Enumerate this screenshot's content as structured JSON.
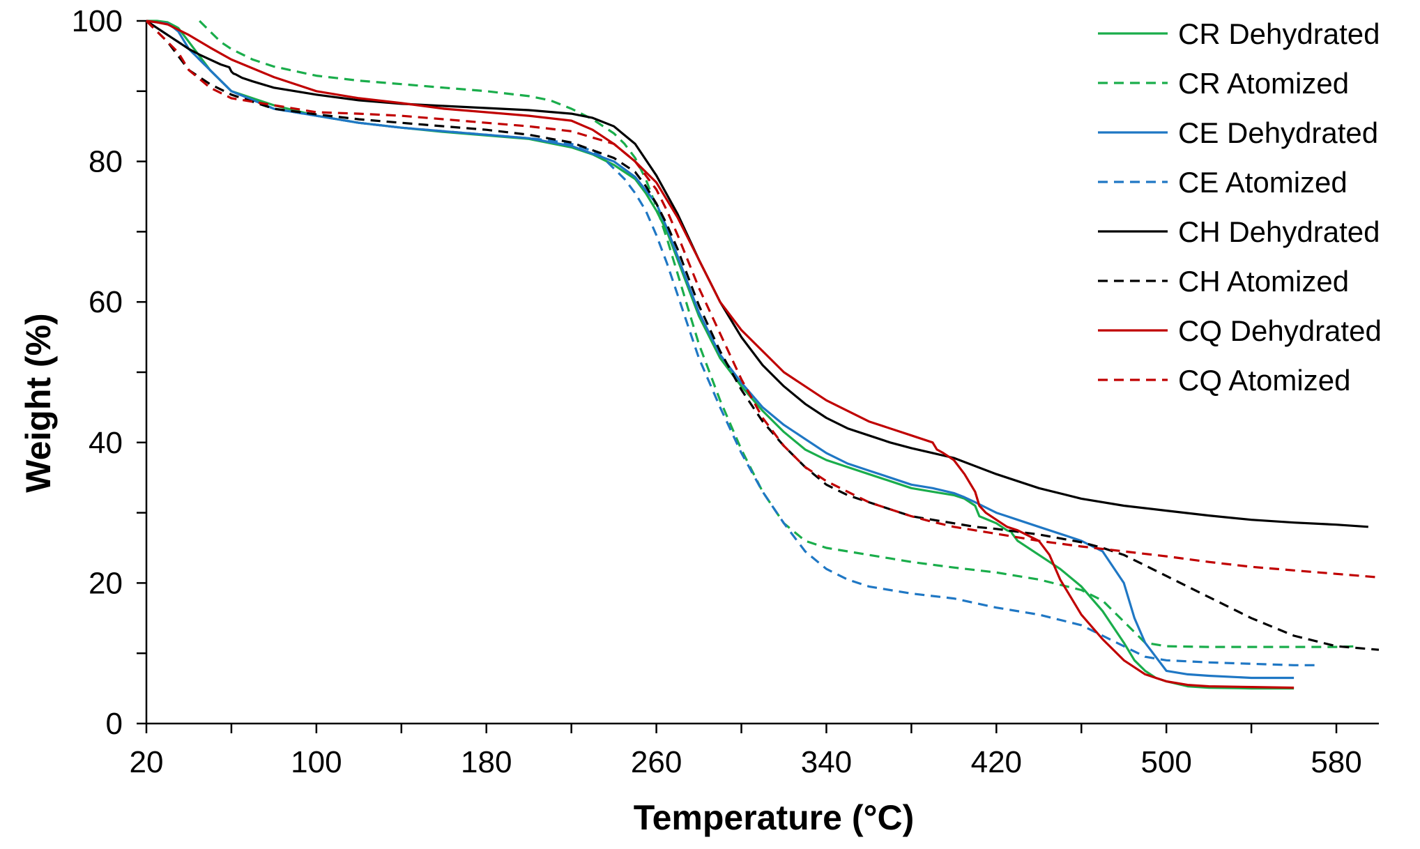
{
  "chart_data": {
    "type": "line",
    "title": "",
    "xlabel": "Temperature (°C)",
    "ylabel": "Weight (%)",
    "xlim": [
      20,
      600
    ],
    "ylim": [
      0,
      100
    ],
    "xticks": [
      20,
      100,
      180,
      260,
      340,
      420,
      500,
      580
    ],
    "yticks": [
      0,
      20,
      40,
      60,
      80,
      100
    ],
    "grid": false,
    "legend_position": "top-right",
    "series": [
      {
        "name": "CR Dehydrated",
        "color": "#1aad4b",
        "dash": "solid",
        "x": [
          20,
          25,
          30,
          35,
          40,
          50,
          60,
          80,
          100,
          120,
          140,
          160,
          180,
          200,
          220,
          230,
          240,
          250,
          255,
          260,
          265,
          270,
          275,
          280,
          285,
          290,
          300,
          310,
          320,
          330,
          340,
          350,
          360,
          370,
          380,
          390,
          400,
          405,
          410,
          412,
          420,
          425,
          427,
          427.5,
          430,
          440,
          450,
          460,
          470,
          480,
          485,
          490,
          495,
          500,
          510,
          520,
          540,
          560
        ],
        "y": [
          100,
          100,
          99.8,
          99,
          97,
          93,
          90,
          88,
          86.5,
          85.5,
          84.8,
          84.2,
          83.7,
          83.2,
          82,
          81,
          79.5,
          77.5,
          75.5,
          73,
          70,
          66,
          62,
          58,
          55,
          52,
          48,
          44.5,
          41.5,
          39,
          37.5,
          36.5,
          35.5,
          34.5,
          33.5,
          33,
          32.5,
          32,
          31,
          29.5,
          28.5,
          27.5,
          27.3,
          27,
          26,
          24,
          22,
          19.5,
          16,
          11.5,
          9,
          7.5,
          6.5,
          6,
          5.3,
          5.1,
          5,
          5
        ]
      },
      {
        "name": "CR Atomized",
        "color": "#1aad4b",
        "dash": "dashed",
        "x": [
          45,
          50,
          55,
          60,
          70,
          80,
          100,
          120,
          140,
          160,
          180,
          200,
          210,
          220,
          230,
          240,
          245,
          250,
          255,
          260,
          265,
          270,
          275,
          280,
          285,
          290,
          300,
          310,
          320,
          330,
          340,
          350,
          360,
          370,
          380,
          400,
          420,
          440,
          460,
          470,
          480,
          490,
          500,
          520,
          540,
          560,
          580,
          590
        ],
        "y": [
          100,
          98.5,
          97,
          96,
          94.5,
          93.5,
          92.2,
          91.5,
          91,
          90.5,
          90,
          89.3,
          88.7,
          87.5,
          86,
          84,
          82.5,
          80.5,
          77.5,
          73.5,
          69,
          64,
          59,
          54,
          50,
          46,
          39,
          33,
          28.5,
          26,
          25,
          24.5,
          24,
          23.5,
          23,
          22.2,
          21.5,
          20.5,
          19,
          17.5,
          14.5,
          11.5,
          11,
          10.9,
          10.9,
          10.9,
          10.9,
          11
        ]
      },
      {
        "name": "CE Dehydrated",
        "color": "#1f77c4",
        "dash": "solid",
        "x": [
          20,
          25,
          30,
          33,
          35,
          40,
          50,
          60,
          80,
          100,
          120,
          140,
          160,
          180,
          200,
          220,
          240,
          250,
          260,
          265,
          270,
          275,
          280,
          285,
          290,
          300,
          310,
          320,
          330,
          340,
          350,
          360,
          370,
          380,
          390,
          400,
          405,
          410,
          420,
          425,
          430,
          440,
          450,
          460,
          470,
          480,
          485,
          490,
          495,
          500,
          510,
          520,
          540,
          560
        ],
        "y": [
          100,
          99.8,
          99.6,
          99,
          98.5,
          96,
          93,
          90,
          87.5,
          86.5,
          85.5,
          84.8,
          84.3,
          83.8,
          83.3,
          82.2,
          80,
          77.8,
          74,
          70.5,
          66.5,
          62.5,
          58.5,
          55.5,
          52.5,
          48.5,
          45,
          42.5,
          40.5,
          38.5,
          37,
          36,
          35,
          34,
          33.5,
          32.8,
          32.2,
          31.5,
          30,
          29.5,
          29,
          28,
          27,
          26,
          24.5,
          20,
          15,
          11.5,
          9.5,
          7.5,
          7,
          6.8,
          6.5,
          6.5
        ]
      },
      {
        "name": "CE Atomized",
        "color": "#1f77c4",
        "dash": "dashed",
        "x": [
          20,
          25,
          30,
          40,
          50,
          60,
          80,
          100,
          120,
          140,
          160,
          180,
          200,
          210,
          220,
          225,
          230,
          235,
          240,
          245,
          250,
          255,
          260,
          265,
          270,
          275,
          280,
          290,
          300,
          310,
          320,
          330,
          340,
          350,
          360,
          370,
          380,
          400,
          420,
          440,
          460,
          470,
          480,
          490,
          500,
          520,
          540,
          560,
          570
        ],
        "y": [
          100,
          99,
          98,
          96,
          93,
          90,
          87.5,
          86.5,
          85.5,
          84.8,
          84.3,
          83.8,
          83.3,
          83,
          82.5,
          82,
          81.5,
          80.5,
          79,
          77.5,
          75.5,
          73,
          69.5,
          65.5,
          61,
          56.5,
          52,
          45,
          38.5,
          33,
          28.5,
          24.5,
          22,
          20.5,
          19.5,
          19,
          18.5,
          17.8,
          16.5,
          15.5,
          14,
          12.5,
          11,
          9.5,
          9,
          8.7,
          8.5,
          8.3,
          8.3
        ]
      },
      {
        "name": "CH Dehydrated",
        "color": "#000000",
        "dash": "solid",
        "x": [
          20,
          25,
          30,
          35,
          40,
          45,
          50,
          55,
          59,
          60,
          61,
          62,
          65,
          70,
          80,
          100,
          120,
          140,
          160,
          180,
          200,
          220,
          230,
          240,
          250,
          260,
          270,
          280,
          290,
          300,
          310,
          320,
          330,
          340,
          350,
          360,
          370,
          380,
          390,
          400,
          420,
          440,
          460,
          480,
          500,
          520,
          540,
          560,
          580,
          595
        ],
        "y": [
          100,
          99,
          98,
          97,
          96,
          95.2,
          94.5,
          93.8,
          93.4,
          92.8,
          92.5,
          92.4,
          91.9,
          91.4,
          90.5,
          89.5,
          88.7,
          88.2,
          87.9,
          87.6,
          87.3,
          86.8,
          86.2,
          85,
          82.5,
          78,
          72.5,
          66,
          60,
          55,
          51,
          48,
          45.5,
          43.5,
          42,
          41,
          40,
          39.2,
          38.5,
          37.8,
          35.5,
          33.5,
          32,
          31,
          30.3,
          29.6,
          29,
          28.6,
          28.3,
          28
        ]
      },
      {
        "name": "CH Atomized",
        "color": "#000000",
        "dash": "dashed",
        "x": [
          20,
          25,
          30,
          35,
          40,
          50,
          60,
          80,
          100,
          120,
          140,
          160,
          180,
          200,
          220,
          240,
          250,
          255,
          260,
          265,
          270,
          275,
          280,
          290,
          300,
          310,
          320,
          330,
          340,
          350,
          360,
          370,
          380,
          390,
          400,
          410,
          420,
          430,
          440,
          460,
          470,
          480,
          490,
          500,
          520,
          540,
          560,
          580,
          600
        ],
        "y": [
          100,
          98.5,
          97,
          95,
          93,
          91,
          89.5,
          87.5,
          86.7,
          86,
          85.5,
          85,
          84.5,
          83.8,
          82.7,
          80.5,
          78.5,
          76.5,
          74,
          71,
          67.5,
          63.5,
          59.5,
          53,
          47.5,
          43,
          39.5,
          36.5,
          34,
          32.5,
          31.5,
          30.5,
          29.5,
          29,
          28.5,
          28,
          27.7,
          27.3,
          26.9,
          25.8,
          25,
          24,
          22.5,
          21,
          18,
          15,
          12.5,
          11,
          10.5
        ]
      },
      {
        "name": "CQ Dehydrated",
        "color": "#c00000",
        "dash": "solid",
        "x": [
          20,
          25,
          30,
          40,
          50,
          60,
          80,
          100,
          120,
          140,
          160,
          180,
          200,
          220,
          230,
          240,
          250,
          260,
          270,
          280,
          290,
          300,
          320,
          340,
          360,
          380,
          390,
          392,
          395,
          400,
          405,
          410,
          412,
          415,
          420,
          425,
          430,
          440,
          445,
          450,
          460,
          470,
          480,
          490,
          500,
          510,
          520,
          540,
          560
        ],
        "y": [
          100,
          99.8,
          99.5,
          98,
          96.2,
          94.5,
          92,
          90,
          89,
          88.3,
          87.5,
          87,
          86.5,
          85.8,
          84.5,
          82.5,
          80,
          77,
          72,
          66,
          60,
          56,
          50,
          46,
          43,
          41,
          40,
          39,
          38.5,
          37.5,
          35.5,
          33,
          31,
          30,
          29,
          28,
          27.5,
          26,
          24,
          20.5,
          15.5,
          12,
          9,
          7,
          6,
          5.5,
          5.3,
          5.2,
          5.1
        ]
      },
      {
        "name": "CQ Atomized",
        "color": "#c00000",
        "dash": "dashed",
        "x": [
          20,
          25,
          30,
          35,
          40,
          50,
          60,
          80,
          100,
          120,
          140,
          160,
          180,
          200,
          220,
          240,
          250,
          260,
          265,
          270,
          280,
          290,
          300,
          310,
          320,
          330,
          340,
          350,
          360,
          370,
          380,
          390,
          400,
          420,
          440,
          460,
          480,
          500,
          520,
          540,
          560,
          580,
          600
        ],
        "y": [
          100,
          98.5,
          97,
          95.5,
          93,
          90.5,
          89,
          88,
          87,
          86.8,
          86.5,
          86,
          85.5,
          85,
          84.3,
          82.5,
          80,
          76,
          73,
          69.5,
          62,
          55.5,
          49,
          43.5,
          39.5,
          36.5,
          34.5,
          33,
          31.5,
          30.5,
          29.5,
          28.7,
          28,
          27,
          26,
          25.2,
          24.5,
          23.8,
          23,
          22.3,
          21.8,
          21.3,
          20.8
        ]
      }
    ]
  }
}
